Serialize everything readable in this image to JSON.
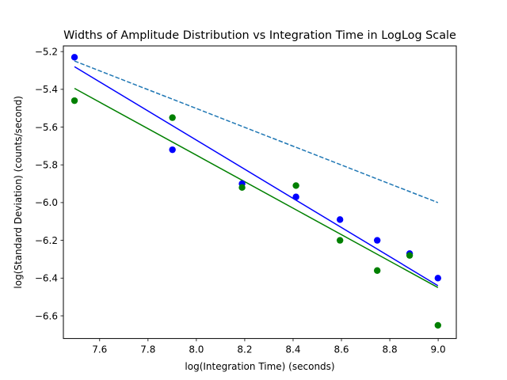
{
  "chart_data": {
    "type": "scatter",
    "title": "Widths of Amplitude Distribution vs Integration Time in LogLog Scale",
    "xlabel": "log(Integration Time) (seconds)",
    "ylabel": "log(Standard Deviation) (counts/second)",
    "xlim": [
      7.45,
      9.075
    ],
    "ylim": [
      -6.72,
      -5.17
    ],
    "xticks": [
      7.6,
      7.8,
      8.0,
      8.2,
      8.4,
      8.6,
      8.8,
      9.0
    ],
    "xtick_labels": [
      "7.6",
      "7.8",
      "8.0",
      "8.2",
      "8.4",
      "8.6",
      "8.8",
      "9.0"
    ],
    "yticks": [
      -6.6,
      -6.4,
      -6.2,
      -6.0,
      -5.8,
      -5.6,
      -5.4,
      -5.2
    ],
    "ytick_labels": [
      "−6.6",
      "−6.4",
      "−6.2",
      "−6.0",
      "−5.8",
      "−5.6",
      "−5.4",
      "−5.2"
    ],
    "grid": false,
    "series": [
      {
        "kind": "scatter",
        "color": "#0000ff",
        "x": [
          7.496,
          7.901,
          8.189,
          8.412,
          8.594,
          8.748,
          8.882,
          8.999
        ],
        "y": [
          -5.23,
          -5.72,
          -5.9,
          -5.97,
          -6.09,
          -6.2,
          -6.27,
          -6.4
        ]
      },
      {
        "kind": "scatter",
        "color": "#008000",
        "x": [
          7.496,
          7.901,
          8.189,
          8.412,
          8.594,
          8.748,
          8.882,
          8.999
        ],
        "y": [
          -5.46,
          -5.55,
          -5.92,
          -5.91,
          -6.2,
          -6.36,
          -6.28,
          -6.65
        ]
      },
      {
        "kind": "line",
        "style": "solid",
        "color": "#0000ff",
        "x": [
          7.496,
          8.999
        ],
        "y": [
          -5.28,
          -6.44
        ]
      },
      {
        "kind": "line",
        "style": "solid",
        "color": "#008000",
        "x": [
          7.496,
          8.999
        ],
        "y": [
          -5.395,
          -6.45
        ]
      },
      {
        "kind": "line",
        "style": "dashed",
        "color": "#1f77b4",
        "x": [
          7.496,
          8.999
        ],
        "y": [
          -5.25,
          -6.0
        ]
      }
    ]
  }
}
